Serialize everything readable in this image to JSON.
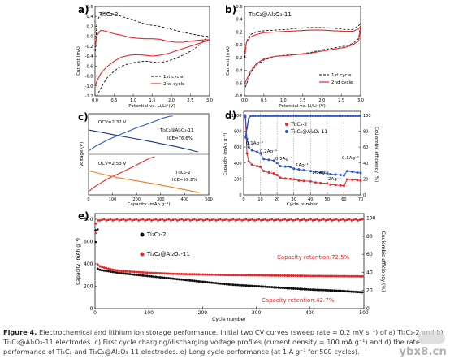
{
  "figure": {
    "caption_label": "Figure 4.",
    "caption_text": "Electrochemical and lithium ion storage performance. Initial two CV curves (sweep rate = 0.2 mV s⁻¹) of a) Ti₃C₂-2 and b) Ti₃C₂@Al₂O₃-11 electrodes. c) First cycle charging/discharging voltage profiles (current density = 100 mA g⁻¹) and d) the rate performance of Ti₃C₂ and Ti₃C₂@Al₂O₃-11 electrodes. e) Long cycle performance (at 1 A g⁻¹ for 500 cycles).",
    "watermark": "ybx8.cn"
  },
  "panels": {
    "a": {
      "letter": "a)",
      "sample": "Ti₃C₂-2",
      "ylabel": "Current (mA)",
      "xlabel": "Potential vs. Li/Li⁺(V)",
      "legend": [
        "1st cycle",
        "2nd cycle"
      ]
    },
    "b": {
      "letter": "b)",
      "sample": "Ti₃C₂@Al₂O₃-11",
      "ylabel": "Current (mA)",
      "xlabel": "Potential vs. Li/Li⁺(V)",
      "legend": [
        "1st cycle",
        "2nd cycle"
      ]
    },
    "c": {
      "letter": "c)",
      "ylabel": "Voltage (V)",
      "xlabel": "Capacity (mAh g⁻¹)",
      "top_ocv": "OCV=2.32 V",
      "top_sample": "Ti₃C₂@Al₂O₃-11",
      "top_ice": "ICE=76.6%",
      "bot_ocv": "OCV=2.53 V",
      "bot_sample": "Ti₃C₂-2",
      "bot_ice": "ICE=59.8%"
    },
    "d": {
      "letter": "d)",
      "ylabel": "Capacity (mAh g⁻¹)",
      "ylabel2": "Coulombic efficiency (%)",
      "xlabel": "Cycle number",
      "legend": [
        "Ti₃C₂-2",
        "Ti₃C₂@Al₂O₃-11"
      ],
      "rates": [
        "0.1Ag⁻¹",
        "0.2Ag⁻¹",
        "0.5Ag⁻¹",
        "1Ag⁻¹",
        "1.5Ag⁻¹",
        "2Ag⁻¹",
        "0.1Ag⁻¹"
      ]
    },
    "e": {
      "letter": "e)",
      "ylabel": "Capacity (mAh g⁻¹)",
      "ylabel2": "Coulombic efficiency (%)",
      "xlabel": "Cycle number",
      "legend": [
        "Ti₃C₂-2",
        "Ti₃C₂@Al₂O₃-11"
      ],
      "retention_red": "Capacity retention:72.5%",
      "retention_black": "Capacity retention:42.7%"
    }
  },
  "colors": {
    "red": "#e8282b",
    "black": "#111111",
    "blue": "#2b55c9",
    "green": "#2e8b3a",
    "orange": "#ee7d22",
    "navy": "#1d2f8f"
  },
  "chart_data": [
    {
      "type": "line",
      "panel": "a",
      "title": "",
      "x_ticks": [
        "0.0",
        "0.5",
        "1.0",
        "1.5",
        "2.0",
        "2.5",
        "3.0"
      ],
      "y_ticks": [
        "-1.2",
        "-1.0",
        "-0.8",
        "-0.6",
        "-0.4",
        "-0.2",
        "0.0",
        "0.2",
        "0.4",
        "0.6"
      ],
      "xlim": [
        0,
        3
      ],
      "ylim": [
        -1.2,
        0.6
      ],
      "series": [
        {
          "name": "1st cycle",
          "style": "dashed",
          "x": [
            0.01,
            0.05,
            0.15,
            0.3,
            0.5,
            0.7,
            0.9,
            1.1,
            1.3,
            1.5,
            1.7,
            1.9,
            2.1,
            2.3,
            2.5,
            2.7,
            2.9,
            3.0,
            2.9,
            2.7,
            2.5,
            2.3,
            2.1,
            1.9,
            1.7,
            1.5,
            1.3,
            1.1,
            0.9,
            0.7,
            0.5,
            0.3,
            0.15,
            0.05,
            0.01
          ],
          "y": [
            -0.3,
            0.3,
            0.45,
            0.48,
            0.45,
            0.4,
            0.35,
            0.3,
            0.25,
            0.22,
            0.2,
            0.16,
            0.12,
            0.08,
            0.05,
            0.02,
            0.0,
            0.0,
            -0.05,
            -0.2,
            -0.3,
            -0.38,
            -0.45,
            -0.5,
            -0.53,
            -0.52,
            -0.5,
            -0.52,
            -0.55,
            -0.6,
            -0.7,
            -0.85,
            -1.05,
            -1.2,
            -1.2
          ]
        },
        {
          "name": "2nd cycle",
          "style": "solid",
          "x": [
            0.01,
            0.05,
            0.15,
            0.3,
            0.5,
            0.7,
            0.9,
            1.1,
            1.3,
            1.5,
            1.7,
            1.9,
            2.1,
            2.3,
            2.5,
            2.7,
            2.9,
            3.0,
            2.9,
            2.7,
            2.5,
            2.3,
            2.1,
            1.9,
            1.7,
            1.5,
            1.3,
            1.1,
            0.9,
            0.7,
            0.5,
            0.3,
            0.15,
            0.05,
            0.01
          ],
          "y": [
            -0.2,
            0.02,
            0.12,
            0.1,
            0.05,
            0.02,
            -0.02,
            -0.04,
            -0.05,
            -0.05,
            -0.06,
            -0.1,
            -0.12,
            -0.12,
            -0.1,
            -0.08,
            -0.07,
            -0.07,
            -0.1,
            -0.15,
            -0.2,
            -0.25,
            -0.3,
            -0.35,
            -0.38,
            -0.4,
            -0.38,
            -0.37,
            -0.38,
            -0.42,
            -0.5,
            -0.62,
            -0.75,
            -0.9,
            -1.0
          ]
        }
      ]
    },
    {
      "type": "line",
      "panel": "b",
      "title": "",
      "x_ticks": [
        "0.0",
        "0.5",
        "1.0",
        "1.5",
        "2.0",
        "2.5",
        "3.0"
      ],
      "y_ticks": [
        "-0.8",
        "-0.6",
        "-0.4",
        "-0.2",
        "0.0",
        "0.2",
        "0.4",
        "0.6"
      ],
      "xlim": [
        0,
        3
      ],
      "ylim": [
        -0.8,
        0.6
      ],
      "series": [
        {
          "name": "1st cycle",
          "style": "dashed",
          "x": [
            0.01,
            0.05,
            0.15,
            0.3,
            0.5,
            0.8,
            1.1,
            1.4,
            1.7,
            2.0,
            2.3,
            2.6,
            2.8,
            2.95,
            3.0,
            2.95,
            2.8,
            2.6,
            2.3,
            2.0,
            1.7,
            1.4,
            1.1,
            0.8,
            0.5,
            0.3,
            0.15,
            0.05,
            0.01
          ],
          "y": [
            -0.2,
            0.05,
            0.16,
            0.2,
            0.22,
            0.23,
            0.24,
            0.26,
            0.27,
            0.27,
            0.26,
            0.24,
            0.24,
            0.3,
            0.35,
            0.1,
            0.02,
            -0.02,
            -0.05,
            -0.08,
            -0.12,
            -0.15,
            -0.16,
            -0.18,
            -0.24,
            -0.32,
            -0.45,
            -0.62,
            -0.68
          ]
        },
        {
          "name": "2nd cycle",
          "style": "solid",
          "x": [
            0.01,
            0.05,
            0.15,
            0.3,
            0.5,
            0.8,
            1.1,
            1.4,
            1.7,
            2.0,
            2.3,
            2.6,
            2.8,
            2.95,
            3.0,
            2.95,
            2.8,
            2.6,
            2.3,
            2.0,
            1.7,
            1.4,
            1.1,
            0.8,
            0.5,
            0.3,
            0.15,
            0.05,
            0.01
          ],
          "y": [
            -0.15,
            0.04,
            0.12,
            0.16,
            0.19,
            0.2,
            0.21,
            0.22,
            0.23,
            0.23,
            0.22,
            0.21,
            0.21,
            0.25,
            0.28,
            0.06,
            0.0,
            -0.04,
            -0.07,
            -0.1,
            -0.13,
            -0.15,
            -0.17,
            -0.18,
            -0.22,
            -0.3,
            -0.42,
            -0.55,
            -0.6
          ]
        }
      ]
    },
    {
      "type": "line",
      "panel": "c",
      "title": "",
      "x_ticks": [
        "0",
        "100",
        "200",
        "300",
        "400",
        "500"
      ],
      "xlim": [
        0,
        500
      ],
      "series": [
        {
          "name": "Ti₃C₂@Al₂O₃-11 charge",
          "color": "blue",
          "x": [
            0,
            30,
            80,
            140,
            200,
            260,
            310,
            340,
            350
          ],
          "y": [
            0.05,
            0.18,
            0.35,
            0.52,
            0.68,
            0.82,
            0.95,
            1.0,
            1.0
          ]
        },
        {
          "name": "Ti₃C₂@Al₂O₃-11 discharge",
          "color": "navy",
          "x": [
            0,
            60,
            120,
            180,
            240,
            300,
            360,
            420,
            455
          ],
          "y": [
            0.62,
            0.55,
            0.47,
            0.4,
            0.33,
            0.25,
            0.17,
            0.08,
            0.02
          ]
        },
        {
          "name": "Ti₃C₂-2 charge",
          "color": "red",
          "x": [
            0,
            30,
            80,
            140,
            190,
            230,
            260,
            275
          ],
          "y": [
            0.05,
            0.2,
            0.4,
            0.58,
            0.74,
            0.88,
            0.97,
            1.0
          ]
        },
        {
          "name": "Ti₃C₂-2 discharge",
          "color": "orange",
          "x": [
            0,
            60,
            120,
            200,
            280,
            360,
            420,
            460
          ],
          "y": [
            0.62,
            0.52,
            0.43,
            0.34,
            0.25,
            0.15,
            0.07,
            0.02
          ]
        }
      ]
    },
    {
      "type": "line",
      "panel": "d",
      "title": "",
      "x_ticks": [
        "0",
        "10",
        "20",
        "30",
        "40",
        "50",
        "60",
        "70"
      ],
      "y_ticks": [
        "0",
        "200",
        "400",
        "600",
        "800",
        "1000"
      ],
      "y2_ticks": [
        "0",
        "20",
        "40",
        "60",
        "80",
        "100"
      ],
      "xlim": [
        0,
        70
      ],
      "ylim": [
        0,
        1050
      ],
      "series": [
        {
          "name": "Ti₃C₂-2",
          "color": "red",
          "x": [
            1,
            2,
            3,
            5,
            8,
            10,
            12,
            15,
            18,
            20,
            22,
            25,
            28,
            30,
            33,
            36,
            40,
            43,
            46,
            50,
            52,
            55,
            58,
            60,
            62,
            65,
            68,
            70
          ],
          "y": [
            980,
            520,
            420,
            380,
            360,
            350,
            300,
            280,
            270,
            250,
            215,
            205,
            200,
            195,
            180,
            175,
            170,
            155,
            150,
            145,
            130,
            125,
            120,
            115,
            195,
            190,
            185,
            180
          ]
        },
        {
          "name": "Ti₃C₂@Al₂O₃-11",
          "color": "blue",
          "x": [
            1,
            2,
            3,
            5,
            8,
            10,
            12,
            15,
            18,
            20,
            22,
            25,
            28,
            30,
            33,
            36,
            40,
            43,
            46,
            50,
            52,
            55,
            58,
            60,
            62,
            65,
            68,
            70
          ],
          "y": [
            1000,
            700,
            600,
            560,
            540,
            520,
            450,
            440,
            430,
            400,
            360,
            355,
            350,
            330,
            320,
            310,
            300,
            290,
            280,
            270,
            260,
            255,
            250,
            245,
            300,
            290,
            280,
            275
          ]
        },
        {
          "name": "CE",
          "color": "blue",
          "x": [
            1,
            5,
            10,
            20,
            30,
            40,
            50,
            60,
            70
          ],
          "y2": [
            60,
            97,
            98,
            99,
            99,
            99,
            99,
            99,
            99
          ]
        }
      ]
    },
    {
      "type": "scatter",
      "panel": "e",
      "title": "",
      "x_ticks": [
        "0",
        "100",
        "200",
        "300",
        "400",
        "500"
      ],
      "y_ticks": [
        "0",
        "200",
        "400",
        "600",
        "800"
      ],
      "y2_ticks": [
        "0",
        "20",
        "40",
        "60",
        "80",
        "100"
      ],
      "xlim": [
        0,
        500
      ],
      "ylim": [
        0,
        850
      ],
      "series": [
        {
          "name": "Ti₃C₂-2",
          "color": "black",
          "x": [
            1,
            3,
            10,
            30,
            50,
            100,
            150,
            200,
            250,
            300,
            350,
            400,
            450,
            500
          ],
          "y": [
            700,
            360,
            345,
            330,
            315,
            290,
            265,
            240,
            215,
            200,
            185,
            170,
            160,
            145
          ]
        },
        {
          "name": "Ti₃C₂@Al₂O₃-11",
          "color": "red",
          "x": [
            1,
            3,
            10,
            30,
            50,
            100,
            150,
            200,
            250,
            300,
            350,
            400,
            450,
            500
          ],
          "y": [
            760,
            400,
            375,
            350,
            335,
            320,
            310,
            305,
            300,
            298,
            295,
            292,
            290,
            288
          ]
        },
        {
          "name": "CE Ti₃C₂-2",
          "color": "black",
          "x": [
            1,
            5,
            10,
            100,
            200,
            300,
            400,
            500
          ],
          "y2": [
            70,
            98,
            99,
            99,
            99,
            99,
            99,
            99
          ]
        },
        {
          "name": "CE Ti₃C₂@Al₂O₃-11",
          "color": "red",
          "x": [
            1,
            5,
            10,
            100,
            200,
            300,
            400,
            500
          ],
          "y2": [
            80,
            99,
            99,
            99,
            99,
            99,
            99,
            99
          ]
        }
      ]
    }
  ]
}
